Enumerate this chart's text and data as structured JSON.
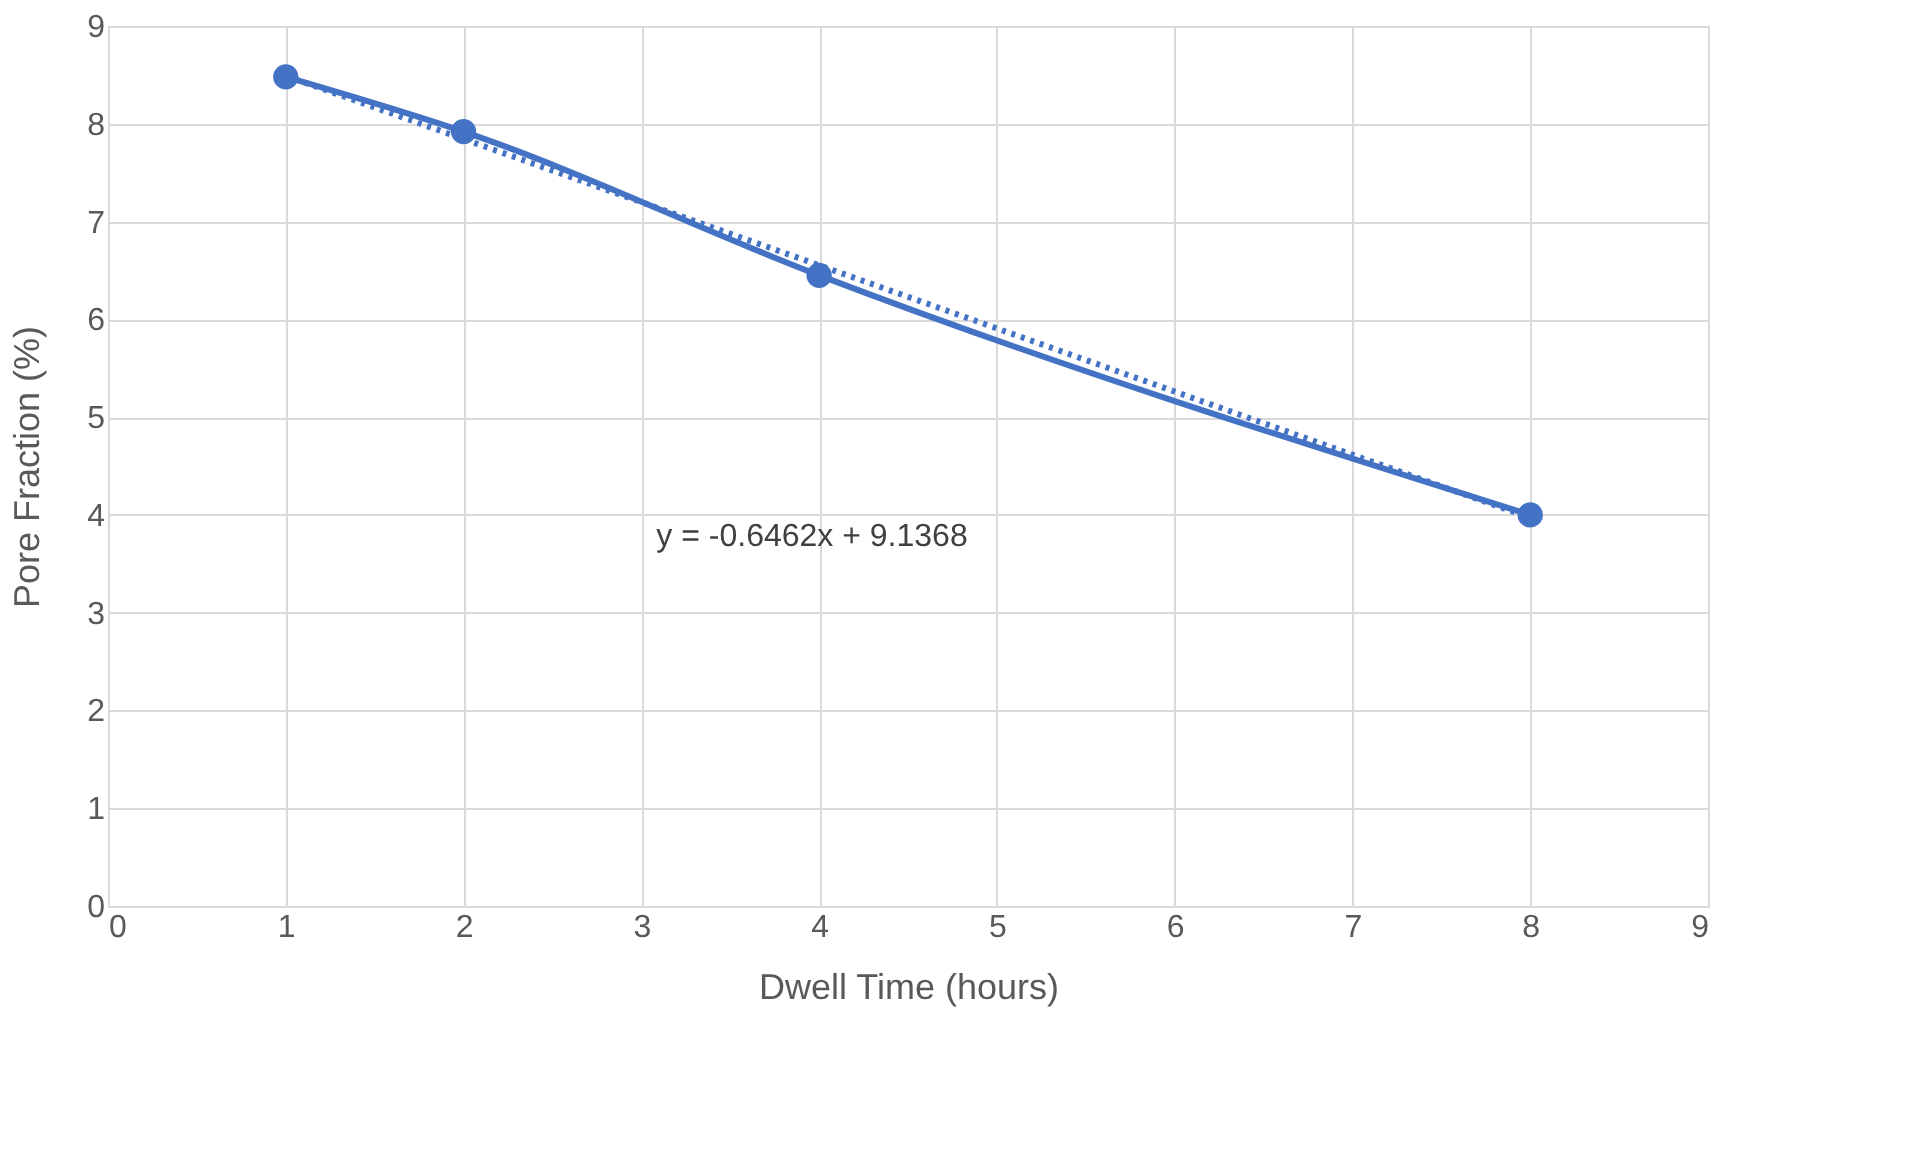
{
  "chart_data": {
    "type": "line",
    "xlabel": "Dwell Time (hours)",
    "ylabel": "Pore Fraction (%)",
    "x": [
      1,
      2,
      4,
      8
    ],
    "series": [
      {
        "color": "#4472c4",
        "values": [
          8.48,
          7.92,
          6.45,
          4.0
        ],
        "marker": "circle"
      },
      {
        "type": "line",
        "color": "#4472c4",
        "x": [
          1,
          8
        ],
        "values": [
          8.49,
          3.97
        ],
        "line_style": "dotted"
      }
    ],
    "xlim": [
      0,
      9
    ],
    "xticks": [
      0,
      1,
      2,
      3,
      4,
      5,
      6,
      7,
      8,
      9
    ],
    "ylim": [
      0,
      9
    ],
    "yticks": [
      0,
      1,
      2,
      3,
      4,
      5,
      6,
      7,
      8,
      9
    ],
    "grid": true,
    "annotations": [
      "y = -0.6462x + 9.1368"
    ]
  }
}
